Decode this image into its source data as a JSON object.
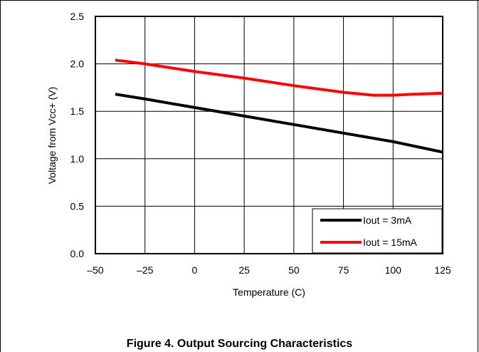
{
  "figure": {
    "caption": "Figure 4. Output Sourcing Characteristics"
  },
  "chart_data": {
    "type": "line",
    "title": "",
    "xlabel": "Temperature (C)",
    "ylabel": "Voltage from Vcc+  (V)",
    "xlim": [
      -50,
      125
    ],
    "ylim": [
      0,
      2.5
    ],
    "xticks": [
      -50,
      -25,
      0,
      25,
      50,
      75,
      100,
      125
    ],
    "xtick_labels": [
      "–50",
      "–25",
      "0",
      "25",
      "50",
      "75",
      "100",
      "125"
    ],
    "yticks": [
      0,
      0.5,
      1,
      1.5,
      2,
      2.5
    ],
    "ytick_labels": [
      "0.0",
      "0.5",
      "1.0",
      "1.5",
      "2.0",
      "2.5"
    ],
    "grid": true,
    "legend_position": "bottom-right",
    "series": [
      {
        "name": "Iout = 3mA",
        "color": "#000000",
        "x": [
          -40,
          -25,
          0,
          25,
          50,
          75,
          100,
          125
        ],
        "y": [
          1.68,
          1.63,
          1.54,
          1.45,
          1.36,
          1.27,
          1.18,
          1.07
        ]
      },
      {
        "name": "Iout = 15mA",
        "color": "#ff0000",
        "x": [
          -40,
          -25,
          0,
          25,
          50,
          75,
          90,
          100,
          110,
          125
        ],
        "y": [
          2.04,
          2.0,
          1.92,
          1.85,
          1.77,
          1.7,
          1.67,
          1.67,
          1.68,
          1.69
        ]
      }
    ]
  }
}
